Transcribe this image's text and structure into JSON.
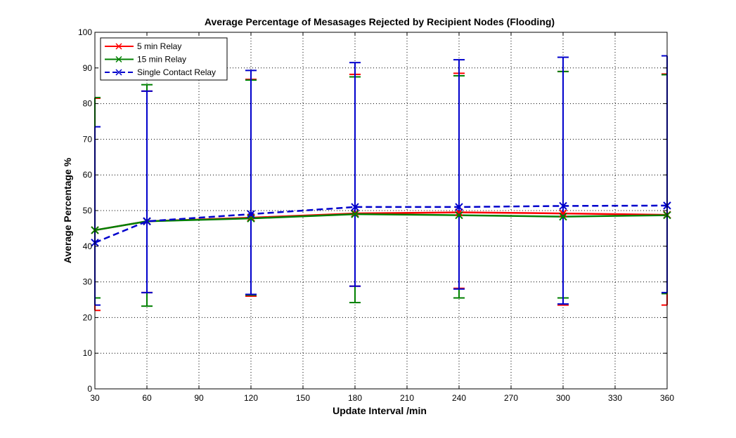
{
  "chart_data": {
    "type": "line",
    "title": "Average Percentage of Mesasages Rejected by Recipient Nodes (Flooding)",
    "xlabel": "Update Interval /min",
    "ylabel": "Average Percentage %",
    "xlim": [
      30,
      360
    ],
    "ylim": [
      0,
      100
    ],
    "xticks": [
      30,
      60,
      90,
      120,
      150,
      180,
      210,
      240,
      270,
      300,
      330,
      360
    ],
    "yticks": [
      0,
      10,
      20,
      30,
      40,
      50,
      60,
      70,
      80,
      90,
      100
    ],
    "grid": true,
    "legend_position": "top-left",
    "x": [
      30,
      60,
      120,
      180,
      240,
      300,
      360
    ],
    "series": [
      {
        "name": "5  min Relay",
        "color": "#ff0000",
        "line_style": "solid",
        "marker": "x",
        "values": [
          44.5,
          47.0,
          48.0,
          49.2,
          49.5,
          49.2,
          48.8
        ],
        "error_low": [
          22.0,
          27.0,
          26.0,
          28.8,
          28.2,
          23.5,
          23.5
        ],
        "error_high": [
          81.5,
          83.5,
          86.8,
          88.2,
          88.5,
          89.0,
          88.3
        ]
      },
      {
        "name": "15 min Relay",
        "color": "#008000",
        "line_style": "solid",
        "marker": "x",
        "values": [
          44.5,
          47.0,
          47.8,
          49.0,
          48.7,
          48.3,
          48.7
        ],
        "error_low": [
          25.5,
          23.2,
          26.3,
          24.2,
          25.5,
          25.5,
          26.7
        ],
        "error_high": [
          81.7,
          85.3,
          86.6,
          87.5,
          87.8,
          89.0,
          88.1
        ]
      },
      {
        "name": "Single Contact Relay",
        "color": "#0000cc",
        "line_style": "dashed",
        "marker": "x",
        "values": [
          41.0,
          47.0,
          49.0,
          51.0,
          51.0,
          51.3,
          51.4
        ],
        "error_low": [
          23.5,
          27.0,
          26.5,
          28.8,
          28.0,
          23.8,
          27.0
        ],
        "error_high": [
          73.5,
          83.5,
          89.3,
          91.5,
          92.3,
          93.0,
          93.4
        ]
      }
    ]
  }
}
